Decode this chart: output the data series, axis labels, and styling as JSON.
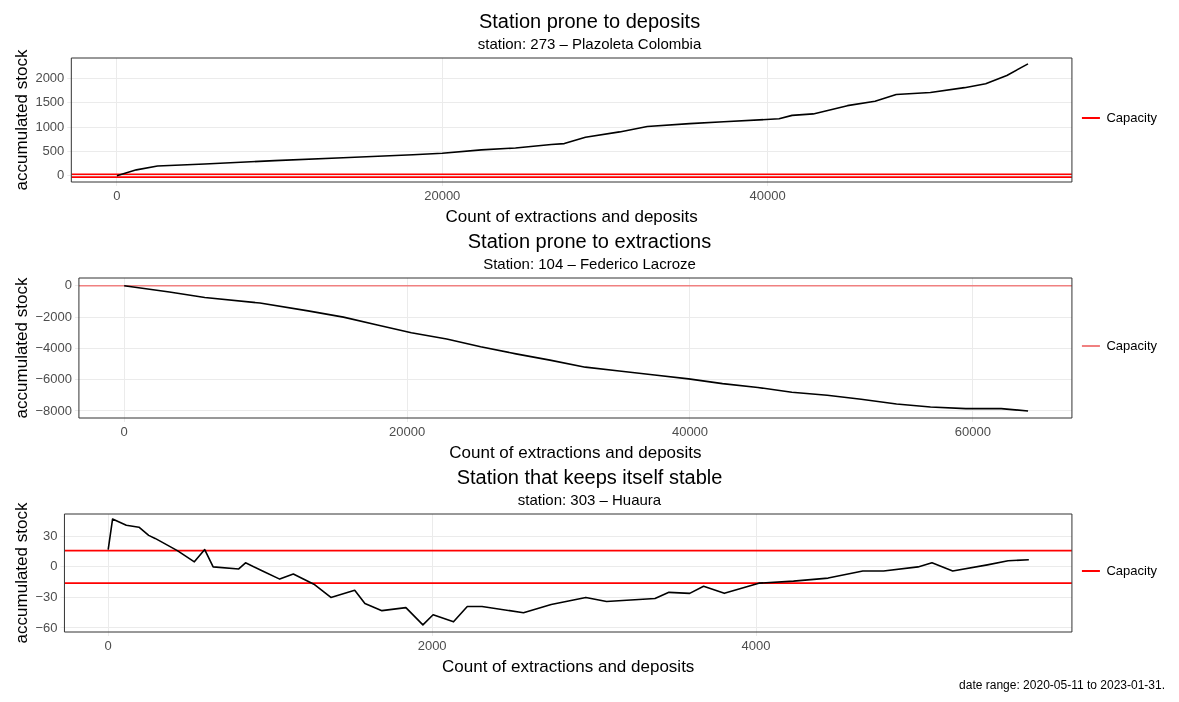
{
  "chart_data": [
    {
      "type": "line",
      "title": "Station prone to deposits",
      "subtitle": "station: 273 – Plazoleta Colombia",
      "xlabel": "Count of extractions and deposits",
      "ylabel": "accumulated stock",
      "x": [
        0,
        1200,
        2500,
        5400,
        9700,
        13900,
        18200,
        20000,
        22400,
        24500,
        26700,
        27500,
        28800,
        30900,
        32600,
        35200,
        37300,
        40700,
        41500,
        42800,
        44900,
        46600,
        47900,
        50000,
        52100,
        53400,
        54700,
        56000
      ],
      "series": [
        {
          "color": "#000000",
          "values": [
            0,
            120,
            200,
            240,
            310,
            370,
            430,
            460,
            530,
            570,
            640,
            660,
            790,
            900,
            1010,
            1070,
            1110,
            1170,
            1240,
            1270,
            1440,
            1530,
            1670,
            1710,
            1810,
            1890,
            2060,
            2300
          ]
        }
      ],
      "xlim": [
        -2800,
        58700
      ],
      "xticks": [
        0,
        20000,
        40000
      ],
      "ylim": [
        -130,
        2420
      ],
      "yticks": [
        0,
        500,
        1000,
        1500,
        2000
      ],
      "ref_lines": [
        {
          "axis": "y",
          "value": 30,
          "label": "Capacity",
          "color": "#ff0000"
        },
        {
          "axis": "y",
          "value": -30,
          "color": "#ff0000"
        }
      ],
      "grid": true,
      "legend": "right"
    },
    {
      "type": "line",
      "title": "Station prone to extractions",
      "subtitle": "Station: 104 – Federico Lacroze",
      "xlabel": "Count of extractions and deposits",
      "ylabel": "accumulated stock",
      "x": [
        0,
        3200,
        5700,
        9600,
        13000,
        15500,
        17900,
        20300,
        22800,
        25200,
        27700,
        30100,
        32600,
        35000,
        37500,
        39900,
        42300,
        44800,
        47200,
        49700,
        52100,
        54600,
        57000,
        59500,
        62000,
        63900
      ],
      "series": [
        {
          "color": "#000000",
          "values": [
            0,
            -400,
            -750,
            -1100,
            -1600,
            -2000,
            -2500,
            -3000,
            -3400,
            -3900,
            -4350,
            -4750,
            -5200,
            -5450,
            -5700,
            -5950,
            -6250,
            -6500,
            -6800,
            -7000,
            -7250,
            -7550,
            -7750,
            -7850,
            -7850,
            -8000
          ]
        }
      ],
      "xlim": [
        -3200,
        67000
      ],
      "xticks": [
        0,
        20000,
        40000,
        60000
      ],
      "ylim": [
        -8450,
        500
      ],
      "yticks": [
        -8000,
        -6000,
        -4000,
        -2000,
        0
      ],
      "ref_lines": [
        {
          "axis": "y",
          "value": 0,
          "label": "Capacity",
          "color": "#f08080"
        }
      ],
      "grid": true,
      "legend": "right"
    },
    {
      "type": "line",
      "title": "Station that keeps itself stable",
      "subtitle": "station: 303 – Huaura",
      "xlabel": "Count of extractions and deposits",
      "ylabel": "accumulated stock",
      "x": [
        0,
        27,
        112,
        190,
        250,
        290,
        427,
        532,
        596,
        648,
        806,
        848,
        953,
        1059,
        1143,
        1270,
        1375,
        1522,
        1585,
        1690,
        1838,
        1943,
        2006,
        2132,
        2217,
        2308,
        2564,
        2735,
        2949,
        3077,
        3376,
        3462,
        3590,
        3676,
        3804,
        4017,
        4231,
        4445,
        4659,
        4787,
        5000,
        5086,
        5214,
        5428,
        5556,
        5684
      ],
      "series": [
        {
          "color": "#000000",
          "values": [
            17,
            47,
            41,
            39,
            31,
            28,
            16,
            5,
            17,
            0,
            -2,
            4,
            -4,
            -12,
            -7,
            -17,
            -30,
            -23,
            -36,
            -43,
            -40,
            -57,
            -47,
            -54,
            -39,
            -39,
            -45,
            -37,
            -30,
            -34,
            -31,
            -25,
            -26,
            -19,
            -26,
            -16,
            -14,
            -11,
            -4,
            -4,
            0,
            4,
            -4,
            2,
            6,
            7
          ]
        }
      ],
      "xlim": [
        -270,
        5950
      ],
      "xticks": [
        0,
        2000,
        4000
      ],
      "ylim": [
        -64,
        52
      ],
      "yticks": [
        -60,
        -30,
        0,
        30
      ],
      "ref_lines": [
        {
          "axis": "y",
          "value": 16,
          "label": "Capacity",
          "color": "#ff0000"
        },
        {
          "axis": "y",
          "value": -16,
          "color": "#ff0000"
        }
      ],
      "grid": true,
      "legend": "right",
      "annotations": [
        "date range: 2020-05-11 to 2023-01-31."
      ]
    }
  ]
}
